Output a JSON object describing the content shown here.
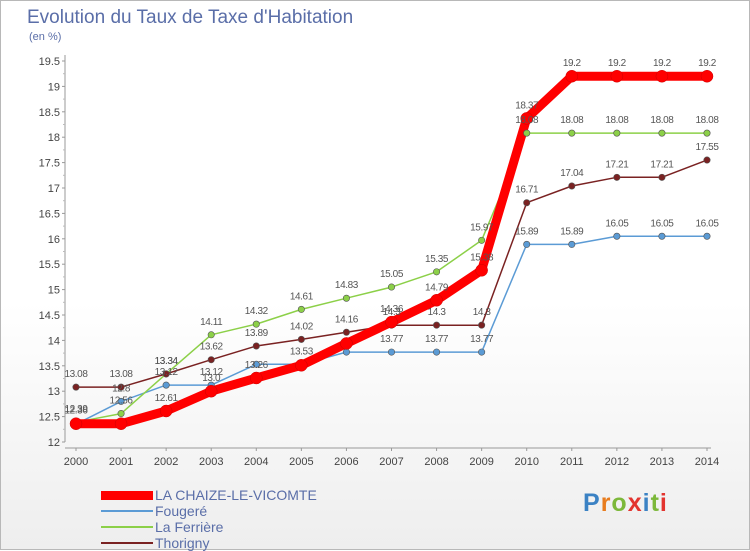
{
  "title": "Evolution du Taux de Taxe d'Habitation",
  "unit": "(en %)",
  "brand": {
    "letters": [
      "P",
      "r",
      "o",
      "x",
      "i",
      "t",
      "i"
    ],
    "colors": [
      "#3b82c4",
      "#e87c1e",
      "#7cb83a",
      "#e3342f",
      "#3b82c4",
      "#7cb83a",
      "#e3342f"
    ]
  },
  "chart_data": {
    "type": "line",
    "title": "Evolution du Taux de Taxe d'Habitation",
    "ylabel": "(en %)",
    "xlabel": "",
    "x": [
      "2000",
      "2001",
      "2002",
      "2003",
      "2004",
      "2005",
      "2006",
      "2007",
      "2008",
      "2009",
      "2010",
      "2011",
      "2012",
      "2013",
      "2014"
    ],
    "ylim": [
      12,
      19.5
    ],
    "yticks": [
      "12",
      "12.5",
      "13",
      "13.5",
      "14",
      "14.5",
      "15",
      "15.5",
      "16",
      "16.5",
      "17",
      "17.5",
      "18",
      "18.5",
      "19",
      "19.5"
    ],
    "grid": false,
    "legend": "bottom-left",
    "series": [
      {
        "name": "LA CHAIZE-LE-VICOMTE",
        "color": "#ff0000",
        "values": [
          12.36,
          12.36,
          12.61,
          13.0,
          13.26,
          13.51,
          13.94,
          14.36,
          14.79,
          15.38,
          18.37,
          19.2,
          19.2,
          19.2,
          19.2
        ],
        "labels": [
          "12.36",
          "",
          "12.61",
          "13.0",
          "13.26",
          "",
          "",
          "14.36",
          "14.79",
          "15.38",
          "18.37",
          "19.2",
          "19.2",
          "19.2",
          "19.2"
        ]
      },
      {
        "name": "Fougeré",
        "color": "#5b9bd5",
        "values": [
          12.35,
          12.8,
          13.12,
          13.12,
          13.53,
          13.53,
          13.77,
          13.77,
          13.77,
          13.77,
          15.89,
          15.89,
          16.05,
          16.05,
          16.05
        ],
        "labels": [
          "",
          "12.8",
          "13.12",
          "13.12",
          "",
          "13.53",
          "",
          "13.77",
          "13.77",
          "13.77",
          "15.89",
          "15.89",
          "16.05",
          "16.05",
          "16.05"
        ]
      },
      {
        "name": "La Ferrière",
        "color": "#8cd048",
        "values": [
          12.39,
          12.56,
          13.34,
          14.11,
          14.32,
          14.61,
          14.83,
          15.05,
          15.35,
          15.97,
          18.08,
          18.08,
          18.08,
          18.08,
          18.08
        ],
        "labels": [
          "12.39",
          "12.56",
          "13.34",
          "14.11",
          "14.32",
          "14.61",
          "14.83",
          "15.05",
          "15.35",
          "15.97",
          "18.08",
          "18.08",
          "18.08",
          "18.08",
          "18.08"
        ]
      },
      {
        "name": "Thorigny",
        "color": "#7a2222",
        "values": [
          13.08,
          13.08,
          13.34,
          13.62,
          13.89,
          14.02,
          14.16,
          14.3,
          14.3,
          14.3,
          16.71,
          17.04,
          17.21,
          17.21,
          17.55
        ],
        "labels": [
          "13.08",
          "13.08",
          "13.34",
          "13.62",
          "13.89",
          "14.02",
          "14.16",
          "14.3",
          "14.3",
          "14.3",
          "16.71",
          "17.04",
          "17.21",
          "17.21",
          "17.55"
        ]
      }
    ]
  }
}
